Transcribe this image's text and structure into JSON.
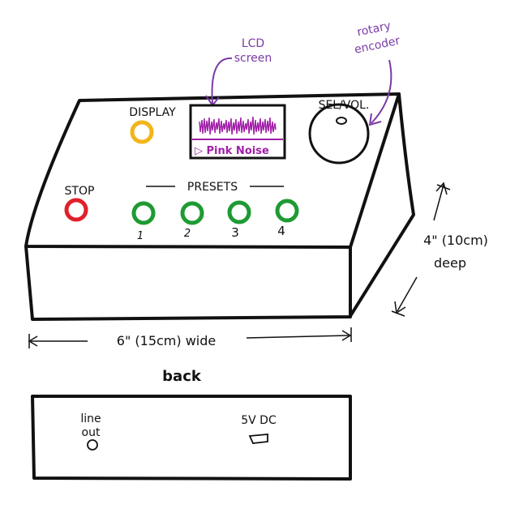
{
  "annotations": {
    "lcd_label_line1": "LCD",
    "lcd_label_line2": "screen",
    "encoder_label_line1": "rotary",
    "encoder_label_line2": "encoder"
  },
  "device": {
    "display_label": "DISPLAY",
    "selvol_label": "SEL/VOL.",
    "stop_label": "STOP",
    "presets_label": "PRESETS",
    "preset_numbers": [
      "1",
      "2",
      "3",
      "4"
    ],
    "lcd_text": "▷ Pink Noise"
  },
  "dimensions": {
    "width_text": "6\" (15cm) wide",
    "depth_text_line1": "4\" (10cm)",
    "depth_text_line2": "deep"
  },
  "back": {
    "title": "back",
    "line_out_line1": "line",
    "line_out_line2": "out",
    "power_label": "5V DC"
  },
  "colors": {
    "ink": "#111111",
    "annotation": "#7a3aa6",
    "lcd": "#a01fa8",
    "display_button": "#f2b51a",
    "stop_button": "#e0202a",
    "preset_button": "#1f9a33"
  }
}
